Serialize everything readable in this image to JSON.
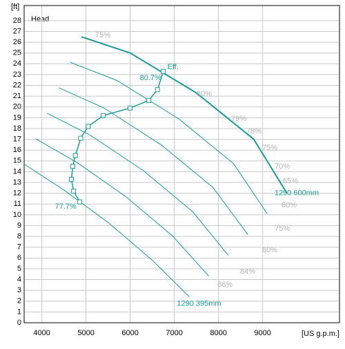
{
  "chart_data": {
    "type": "line",
    "y_label": "[ft]",
    "title": "Head",
    "x_label": "[US g.p.m.]",
    "xlim": [
      3600,
      10740
    ],
    "ylim": [
      0,
      29.4
    ],
    "xticks": [
      4000,
      5000,
      6000,
      7000,
      8000,
      9000
    ],
    "yticks": [
      0,
      1,
      2,
      3,
      4,
      5,
      6,
      7,
      8,
      9,
      10,
      11,
      12,
      13,
      14,
      15,
      16,
      17,
      18,
      19,
      20,
      21,
      22,
      23,
      24,
      25,
      26,
      27,
      28
    ],
    "grid": true,
    "color": "#1a9a9a",
    "series": [
      {
        "name": "1290 600mm",
        "x": [
          4900,
          6000,
          7500,
          8800,
          9550
        ],
        "values": [
          26.5,
          25.0,
          21.3,
          17.0,
          12.0
        ]
      },
      {
        "x": [
          4640,
          5700,
          7100,
          8340,
          9108
        ],
        "values": [
          24.14,
          22.46,
          18.9,
          14.76,
          10.08
        ]
      },
      {
        "x": [
          4380,
          5400,
          6700,
          7880,
          8666
        ],
        "values": [
          21.78,
          19.92,
          16.5,
          12.52,
          8.16
        ]
      },
      {
        "x": [
          4120,
          5100,
          6300,
          7420,
          8224
        ],
        "values": [
          19.42,
          17.38,
          14.1,
          10.28,
          6.24
        ]
      },
      {
        "x": [
          3860,
          4800,
          5900,
          6960,
          7782
        ],
        "values": [
          17.06,
          14.84,
          11.7,
          8.04,
          4.32
        ]
      },
      {
        "name": "1290 395mm",
        "x": [
          3600,
          4500,
          5500,
          6500,
          7340
        ],
        "values": [
          14.7,
          12.3,
          9.3,
          5.8,
          2.4
        ]
      }
    ],
    "efficiency": {
      "name": "Eff.",
      "start_label": "77.7%",
      "end_label": "80.7%",
      "x": [
        4860,
        4720,
        4670,
        4700,
        4760,
        4880,
        5050,
        5390,
        6000,
        6420,
        6620,
        6750
      ],
      "values": [
        11.2,
        12.2,
        13.3,
        14.5,
        15.5,
        17.1,
        18.2,
        19.2,
        19.9,
        20.6,
        21.6,
        23.3
      ]
    },
    "contour_labels": [
      "75%",
      "80%",
      "79%",
      "78%",
      "75%",
      "70%",
      "65%",
      "60%",
      "75%",
      "80%",
      "84%",
      "86%"
    ]
  }
}
